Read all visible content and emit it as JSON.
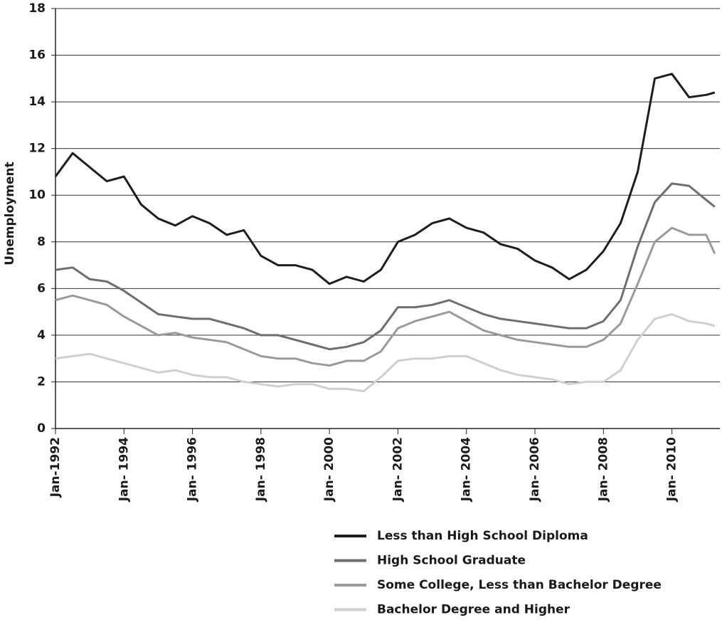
{
  "chart_data": {
    "type": "line",
    "ylabel": "Unemployment",
    "x": [
      1992,
      1992.5,
      1993,
      1993.5,
      1994,
      1994.5,
      1995,
      1995.5,
      1996,
      1996.5,
      1997,
      1997.5,
      1998,
      1998.5,
      1999,
      1999.5,
      2000,
      2000.5,
      2001,
      2001.5,
      2002,
      2002.5,
      2003,
      2003.5,
      2004,
      2004.5,
      2005,
      2005.5,
      2006,
      2006.5,
      2007,
      2007.5,
      2008,
      2008.5,
      2009,
      2009.5,
      2010,
      2010.5,
      2011,
      2011.25
    ],
    "series": [
      {
        "name": "Less than High School Diploma",
        "color": "#1e1e1e",
        "values": [
          10.8,
          11.8,
          11.2,
          10.6,
          10.8,
          9.6,
          9.0,
          8.7,
          9.1,
          8.8,
          8.3,
          8.5,
          7.4,
          7.0,
          7.0,
          6.8,
          6.2,
          6.5,
          6.3,
          6.8,
          8.0,
          8.3,
          8.8,
          9.0,
          8.6,
          8.4,
          7.9,
          7.7,
          7.2,
          6.9,
          6.4,
          6.8,
          7.6,
          8.8,
          11.0,
          15.0,
          15.2,
          14.2,
          14.3,
          14.4
        ]
      },
      {
        "name": "High School Graduate",
        "color": "#6e6e6e",
        "values": [
          6.8,
          6.9,
          6.4,
          6.3,
          5.9,
          5.4,
          4.9,
          4.8,
          4.7,
          4.7,
          4.5,
          4.3,
          4.0,
          4.0,
          3.8,
          3.6,
          3.4,
          3.5,
          3.7,
          4.2,
          5.2,
          5.2,
          5.3,
          5.5,
          5.2,
          4.9,
          4.7,
          4.6,
          4.5,
          4.4,
          4.3,
          4.3,
          4.6,
          5.5,
          7.8,
          9.7,
          10.5,
          10.4,
          9.8,
          9.5
        ]
      },
      {
        "name": "Some College, Less than Bachelor Degree",
        "color": "#9a9a9a",
        "values": [
          5.5,
          5.7,
          5.5,
          5.3,
          4.8,
          4.4,
          4.0,
          4.1,
          3.9,
          3.8,
          3.7,
          3.4,
          3.1,
          3.0,
          3.0,
          2.8,
          2.7,
          2.9,
          2.9,
          3.3,
          4.3,
          4.6,
          4.8,
          5.0,
          4.6,
          4.2,
          4.0,
          3.8,
          3.7,
          3.6,
          3.5,
          3.5,
          3.8,
          4.5,
          6.2,
          8.0,
          8.6,
          8.3,
          8.3,
          7.5
        ]
      },
      {
        "name": "Bachelor Degree and Higher",
        "color": "#cfcfcf",
        "values": [
          3.0,
          3.1,
          3.2,
          3.0,
          2.8,
          2.6,
          2.4,
          2.5,
          2.3,
          2.2,
          2.2,
          2.0,
          1.9,
          1.8,
          1.9,
          1.9,
          1.7,
          1.7,
          1.6,
          2.2,
          2.9,
          3.0,
          3.0,
          3.1,
          3.1,
          2.8,
          2.5,
          2.3,
          2.2,
          2.1,
          1.9,
          2.0,
          2.0,
          2.5,
          3.8,
          4.7,
          4.9,
          4.6,
          4.5,
          4.4
        ]
      }
    ],
    "xlim": [
      1992,
      2011.4
    ],
    "xticks": [
      {
        "value": 1992,
        "label": "Jan-1992"
      },
      {
        "value": 1994,
        "label": "Jan- 1994"
      },
      {
        "value": 1996,
        "label": "Jan- 1996"
      },
      {
        "value": 1998,
        "label": "Jan- 1998"
      },
      {
        "value": 2000,
        "label": "Jan- 2000"
      },
      {
        "value": 2002,
        "label": "Jan- 2002"
      },
      {
        "value": 2004,
        "label": "Jan- 2004"
      },
      {
        "value": 2006,
        "label": "Jan- 2006"
      },
      {
        "value": 2008,
        "label": "Jan- 2008"
      },
      {
        "value": 2010,
        "label": "Jan- 2010"
      }
    ],
    "ylim": [
      0,
      18
    ],
    "yticks": [
      0,
      2,
      4,
      6,
      8,
      10,
      12,
      14,
      16,
      18
    ],
    "grid": true,
    "legend": "bottom"
  }
}
